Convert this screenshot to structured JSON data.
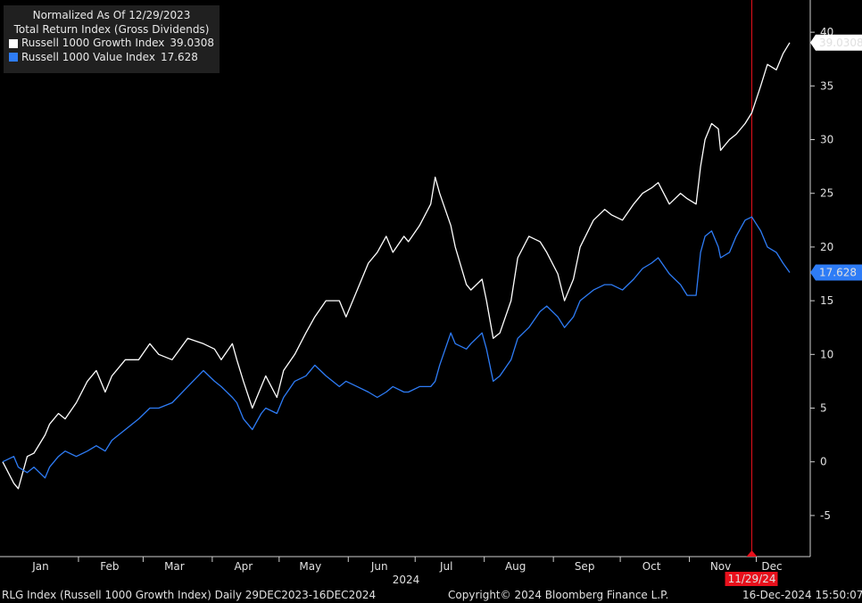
{
  "legend": {
    "title_line1": "Normalized As Of 12/29/2023",
    "title_line2": "Total Return Index (Gross Dividends)",
    "series1_label": "Russell 1000 Growth Index",
    "series1_value": "39.0308",
    "series2_label": "Russell 1000 Value Index",
    "series2_value": "17.628"
  },
  "footer": {
    "left": "RLG Index (Russell 1000 Growth Index)  Daily 29DEC2023-16DEC2024",
    "center": "Copyright© 2024 Bloomberg Finance L.P.",
    "right": "16-Dec-2024 15:50:07"
  },
  "colors": {
    "background": "#000000",
    "growth": "#ffffff",
    "value": "#2e7cf6",
    "marker": "#e8101c"
  },
  "chart_data": {
    "type": "line",
    "x_axis_type": "date",
    "xlim": [
      "2023-12-29",
      "2024-12-16"
    ],
    "ylim": [
      -7,
      43
    ],
    "y_ticks": [
      -5,
      0,
      5,
      10,
      15,
      20,
      25,
      30,
      35,
      40
    ],
    "y_axis_side": "right",
    "x_tick_labels": [
      "Jan",
      "Feb",
      "Mar",
      "Apr",
      "May",
      "Jun",
      "Jul",
      "Aug",
      "Sep",
      "Oct",
      "Nov",
      "Dec"
    ],
    "x_tick_positions": [
      "2024-01-15",
      "2024-02-15",
      "2024-03-15",
      "2024-04-15",
      "2024-05-15",
      "2024-06-15",
      "2024-07-15",
      "2024-08-15",
      "2024-09-15",
      "2024-10-15",
      "2024-11-15",
      "2024-12-08"
    ],
    "year_label": "2024",
    "grid": false,
    "legend_position": "top-left",
    "vertical_marker": {
      "date": "2024-11-29",
      "label": "11/29/24"
    },
    "series": [
      {
        "name": "Russell 1000 Growth Index",
        "last_value_label": "39.0308",
        "points": [
          [
            "2023-12-29",
            0.0
          ],
          [
            "2024-01-03",
            -2.0
          ],
          [
            "2024-01-05",
            -2.5
          ],
          [
            "2024-01-09",
            0.5
          ],
          [
            "2024-01-12",
            0.8
          ],
          [
            "2024-01-17",
            2.5
          ],
          [
            "2024-01-19",
            3.5
          ],
          [
            "2024-01-23",
            4.5
          ],
          [
            "2024-01-26",
            4.0
          ],
          [
            "2024-01-31",
            5.5
          ],
          [
            "2024-02-05",
            7.5
          ],
          [
            "2024-02-09",
            8.5
          ],
          [
            "2024-02-13",
            6.5
          ],
          [
            "2024-02-16",
            8.0
          ],
          [
            "2024-02-22",
            9.5
          ],
          [
            "2024-02-28",
            9.5
          ],
          [
            "2024-03-04",
            11.0
          ],
          [
            "2024-03-08",
            10.0
          ],
          [
            "2024-03-14",
            9.5
          ],
          [
            "2024-03-21",
            11.5
          ],
          [
            "2024-03-28",
            11.0
          ],
          [
            "2024-04-02",
            10.5
          ],
          [
            "2024-04-05",
            9.5
          ],
          [
            "2024-04-10",
            11.0
          ],
          [
            "2024-04-12",
            9.5
          ],
          [
            "2024-04-15",
            7.5
          ],
          [
            "2024-04-19",
            5.0
          ],
          [
            "2024-04-23",
            7.0
          ],
          [
            "2024-04-25",
            8.0
          ],
          [
            "2024-04-30",
            6.0
          ],
          [
            "2024-05-03",
            8.5
          ],
          [
            "2024-05-08",
            10.0
          ],
          [
            "2024-05-13",
            12.0
          ],
          [
            "2024-05-17",
            13.5
          ],
          [
            "2024-05-22",
            15.0
          ],
          [
            "2024-05-28",
            15.0
          ],
          [
            "2024-05-31",
            13.5
          ],
          [
            "2024-06-05",
            16.0
          ],
          [
            "2024-06-10",
            18.5
          ],
          [
            "2024-06-14",
            19.5
          ],
          [
            "2024-06-18",
            21.0
          ],
          [
            "2024-06-21",
            19.5
          ],
          [
            "2024-06-26",
            21.0
          ],
          [
            "2024-06-28",
            20.5
          ],
          [
            "2024-07-03",
            22.0
          ],
          [
            "2024-07-08",
            24.0
          ],
          [
            "2024-07-10",
            26.5
          ],
          [
            "2024-07-12",
            25.0
          ],
          [
            "2024-07-17",
            22.0
          ],
          [
            "2024-07-19",
            20.0
          ],
          [
            "2024-07-24",
            16.5
          ],
          [
            "2024-07-26",
            16.0
          ],
          [
            "2024-07-31",
            17.0
          ],
          [
            "2024-08-02",
            15.0
          ],
          [
            "2024-08-05",
            11.5
          ],
          [
            "2024-08-08",
            12.0
          ],
          [
            "2024-08-13",
            15.0
          ],
          [
            "2024-08-16",
            19.0
          ],
          [
            "2024-08-21",
            21.0
          ],
          [
            "2024-08-26",
            20.5
          ],
          [
            "2024-08-29",
            19.5
          ],
          [
            "2024-09-03",
            17.5
          ],
          [
            "2024-09-06",
            15.0
          ],
          [
            "2024-09-10",
            17.0
          ],
          [
            "2024-09-13",
            20.0
          ],
          [
            "2024-09-19",
            22.5
          ],
          [
            "2024-09-24",
            23.5
          ],
          [
            "2024-09-27",
            23.0
          ],
          [
            "2024-10-02",
            22.5
          ],
          [
            "2024-10-07",
            24.0
          ],
          [
            "2024-10-11",
            25.0
          ],
          [
            "2024-10-15",
            25.5
          ],
          [
            "2024-10-18",
            26.0
          ],
          [
            "2024-10-23",
            24.0
          ],
          [
            "2024-10-28",
            25.0
          ],
          [
            "2024-10-31",
            24.5
          ],
          [
            "2024-11-04",
            24.0
          ],
          [
            "2024-11-06",
            27.5
          ],
          [
            "2024-11-08",
            30.0
          ],
          [
            "2024-11-11",
            31.5
          ],
          [
            "2024-11-14",
            31.0
          ],
          [
            "2024-11-15",
            29.0
          ],
          [
            "2024-11-19",
            30.0
          ],
          [
            "2024-11-22",
            30.5
          ],
          [
            "2024-11-26",
            31.5
          ],
          [
            "2024-11-29",
            32.5
          ],
          [
            "2024-12-03",
            35.0
          ],
          [
            "2024-12-06",
            37.0
          ],
          [
            "2024-12-10",
            36.5
          ],
          [
            "2024-12-13",
            38.0
          ],
          [
            "2024-12-16",
            39.03
          ]
        ]
      },
      {
        "name": "Russell 1000 Value Index",
        "last_value_label": "17.628",
        "points": [
          [
            "2023-12-29",
            0.0
          ],
          [
            "2024-01-03",
            0.5
          ],
          [
            "2024-01-05",
            -0.5
          ],
          [
            "2024-01-09",
            -1.0
          ],
          [
            "2024-01-12",
            -0.5
          ],
          [
            "2024-01-17",
            -1.5
          ],
          [
            "2024-01-19",
            -0.5
          ],
          [
            "2024-01-23",
            0.5
          ],
          [
            "2024-01-26",
            1.0
          ],
          [
            "2024-01-31",
            0.5
          ],
          [
            "2024-02-05",
            1.0
          ],
          [
            "2024-02-09",
            1.5
          ],
          [
            "2024-02-13",
            1.0
          ],
          [
            "2024-02-16",
            2.0
          ],
          [
            "2024-02-22",
            3.0
          ],
          [
            "2024-02-28",
            4.0
          ],
          [
            "2024-03-04",
            5.0
          ],
          [
            "2024-03-08",
            5.0
          ],
          [
            "2024-03-14",
            5.5
          ],
          [
            "2024-03-21",
            7.0
          ],
          [
            "2024-03-28",
            8.5
          ],
          [
            "2024-04-02",
            7.5
          ],
          [
            "2024-04-05",
            7.0
          ],
          [
            "2024-04-10",
            6.0
          ],
          [
            "2024-04-12",
            5.5
          ],
          [
            "2024-04-15",
            4.0
          ],
          [
            "2024-04-19",
            3.0
          ],
          [
            "2024-04-23",
            4.5
          ],
          [
            "2024-04-25",
            5.0
          ],
          [
            "2024-04-30",
            4.5
          ],
          [
            "2024-05-03",
            6.0
          ],
          [
            "2024-05-08",
            7.5
          ],
          [
            "2024-05-13",
            8.0
          ],
          [
            "2024-05-17",
            9.0
          ],
          [
            "2024-05-22",
            8.0
          ],
          [
            "2024-05-28",
            7.0
          ],
          [
            "2024-05-31",
            7.5
          ],
          [
            "2024-06-05",
            7.0
          ],
          [
            "2024-06-10",
            6.5
          ],
          [
            "2024-06-14",
            6.0
          ],
          [
            "2024-06-18",
            6.5
          ],
          [
            "2024-06-21",
            7.0
          ],
          [
            "2024-06-26",
            6.5
          ],
          [
            "2024-06-28",
            6.5
          ],
          [
            "2024-07-03",
            7.0
          ],
          [
            "2024-07-08",
            7.0
          ],
          [
            "2024-07-10",
            7.5
          ],
          [
            "2024-07-12",
            9.0
          ],
          [
            "2024-07-17",
            12.0
          ],
          [
            "2024-07-19",
            11.0
          ],
          [
            "2024-07-24",
            10.5
          ],
          [
            "2024-07-26",
            11.0
          ],
          [
            "2024-07-31",
            12.0
          ],
          [
            "2024-08-02",
            10.5
          ],
          [
            "2024-08-05",
            7.5
          ],
          [
            "2024-08-08",
            8.0
          ],
          [
            "2024-08-13",
            9.5
          ],
          [
            "2024-08-16",
            11.5
          ],
          [
            "2024-08-21",
            12.5
          ],
          [
            "2024-08-26",
            14.0
          ],
          [
            "2024-08-29",
            14.5
          ],
          [
            "2024-09-03",
            13.5
          ],
          [
            "2024-09-06",
            12.5
          ],
          [
            "2024-09-10",
            13.5
          ],
          [
            "2024-09-13",
            15.0
          ],
          [
            "2024-09-19",
            16.0
          ],
          [
            "2024-09-24",
            16.5
          ],
          [
            "2024-09-27",
            16.5
          ],
          [
            "2024-10-02",
            16.0
          ],
          [
            "2024-10-07",
            17.0
          ],
          [
            "2024-10-11",
            18.0
          ],
          [
            "2024-10-15",
            18.5
          ],
          [
            "2024-10-18",
            19.0
          ],
          [
            "2024-10-23",
            17.5
          ],
          [
            "2024-10-28",
            16.5
          ],
          [
            "2024-10-31",
            15.5
          ],
          [
            "2024-11-04",
            15.5
          ],
          [
            "2024-11-06",
            19.5
          ],
          [
            "2024-11-08",
            21.0
          ],
          [
            "2024-11-11",
            21.5
          ],
          [
            "2024-11-14",
            20.0
          ],
          [
            "2024-11-15",
            19.0
          ],
          [
            "2024-11-19",
            19.5
          ],
          [
            "2024-11-22",
            21.0
          ],
          [
            "2024-11-26",
            22.5
          ],
          [
            "2024-11-29",
            22.8
          ],
          [
            "2024-12-03",
            21.5
          ],
          [
            "2024-12-06",
            20.0
          ],
          [
            "2024-12-10",
            19.5
          ],
          [
            "2024-12-13",
            18.5
          ],
          [
            "2024-12-16",
            17.63
          ]
        ]
      }
    ]
  }
}
